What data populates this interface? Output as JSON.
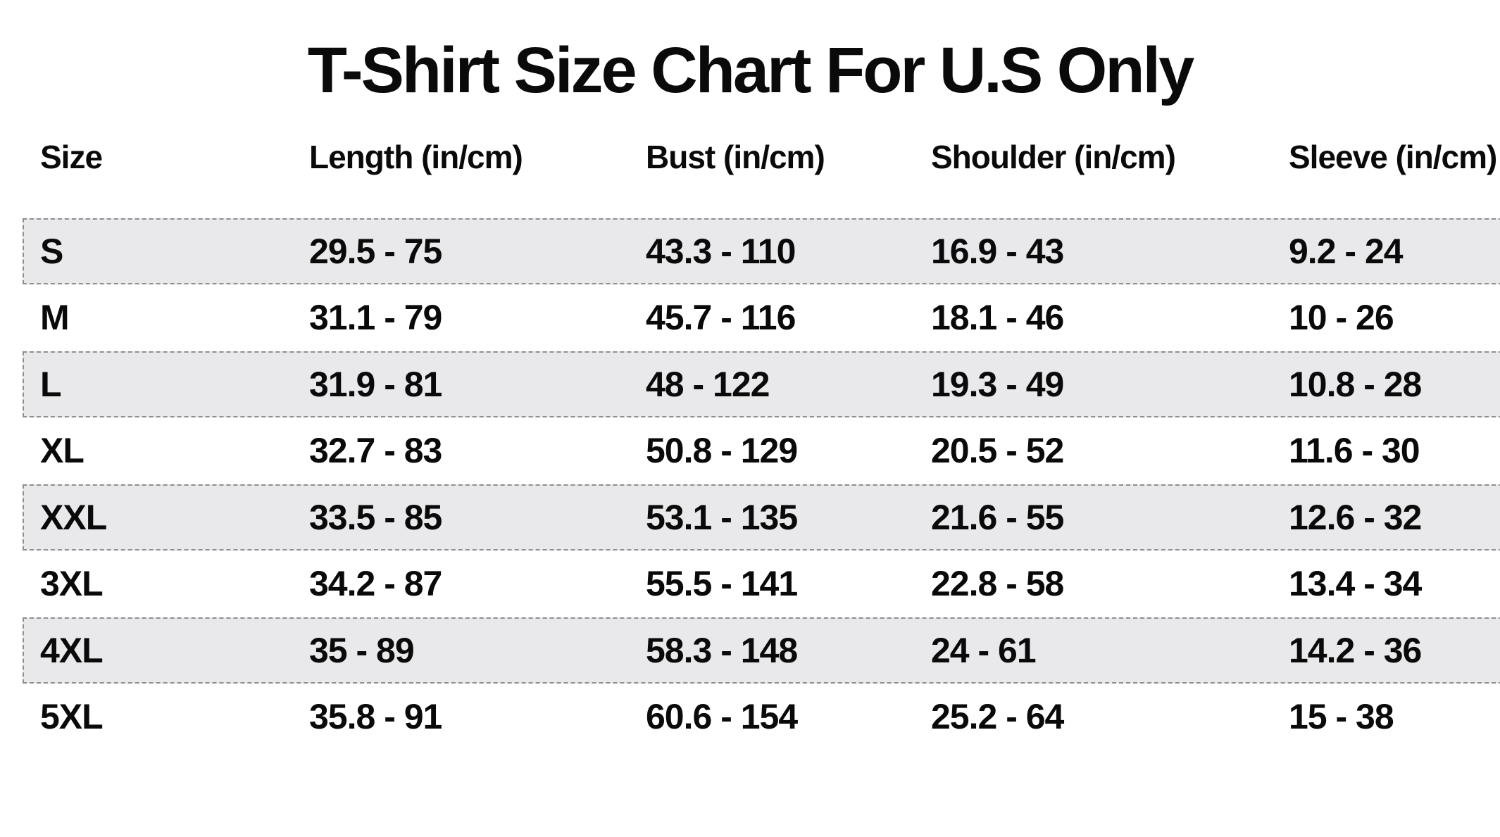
{
  "chart_data": {
    "type": "table",
    "title": "T-Shirt Size Chart For U.S Only",
    "columns": [
      "Size",
      "Length (in/cm)",
      "Bust (in/cm)",
      "Shoulder (in/cm)",
      "Sleeve (in/cm)"
    ],
    "rows": [
      [
        "S",
        "29.5 - 75",
        "43.3 - 110",
        "16.9 - 43",
        "9.2 - 24"
      ],
      [
        "M",
        "31.1 - 79",
        "45.7 - 116",
        "18.1 - 46",
        "10 - 26"
      ],
      [
        "L",
        "31.9 - 81",
        "48 - 122",
        "19.3 - 49",
        "10.8 - 28"
      ],
      [
        "XL",
        "32.7 - 83",
        "50.8 - 129",
        "20.5 - 52",
        "11.6 - 30"
      ],
      [
        "XXL",
        "33.5 - 85",
        "53.1 - 135",
        "21.6 - 55",
        "12.6 - 32"
      ],
      [
        "3XL",
        "34.2 - 87",
        "55.5 - 141",
        "22.8 - 58",
        "13.4 - 34"
      ],
      [
        "4XL",
        "35 - 89",
        "58.3 - 148",
        "24 - 61",
        "14.2 - 36"
      ],
      [
        "5XL",
        "35.8 - 91",
        "60.6 - 154",
        "25.2 - 64",
        "15 - 38"
      ]
    ],
    "layout": {
      "striped_row_indices": [
        0,
        2,
        4,
        6
      ],
      "grid": "dashed-outline-on-striped-rows-only",
      "legend": "none"
    }
  },
  "colors": {
    "background": "#ffffff",
    "text": "#0a0a0a",
    "stripe_background": "#e9e9eb",
    "stripe_border": "#8f8f91"
  }
}
